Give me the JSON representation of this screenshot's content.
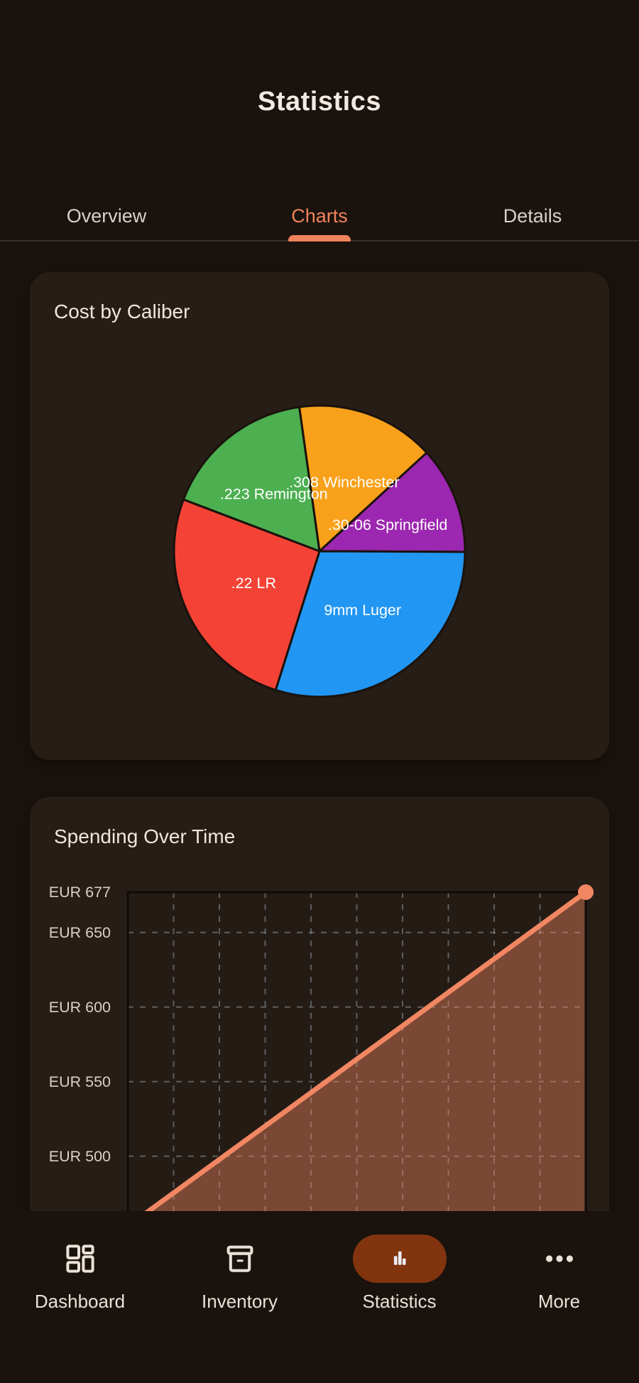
{
  "app": {
    "title": "Statistics"
  },
  "tabs": [
    {
      "label": "Overview",
      "active": false
    },
    {
      "label": "Charts",
      "active": true
    },
    {
      "label": "Details",
      "active": false
    }
  ],
  "chart_data": [
    {
      "type": "pie",
      "title": "Cost by Caliber",
      "start_angle_deg": -8,
      "legend": "labels drawn inside slices",
      "slices": [
        {
          "label": ".308 Winchester",
          "percent": 15.4,
          "color": "#F9A11B"
        },
        {
          "label": ".30-06 Springfield",
          "percent": 11.9,
          "color": "#9C27B0"
        },
        {
          "label": "9mm Luger",
          "percent": 29.8,
          "color": "#2196F3"
        },
        {
          "label": ".22 LR",
          "percent": 25.9,
          "color": "#F44336"
        },
        {
          "label": ".223 Remington",
          "percent": 17.0,
          "color": "#4CAF50"
        }
      ]
    },
    {
      "type": "area-line",
      "title": "Spending Over Time",
      "currency": "EUR",
      "y_top": 677,
      "y_ticks": [
        677,
        650,
        600,
        550,
        500
      ],
      "points": [
        {
          "x": 0,
          "value": 453
        },
        {
          "x": 1,
          "value": 677
        }
      ],
      "x_divisions": 10,
      "grid": "dashed",
      "line_color": "#F18762",
      "fill_color": "rgba(244,135,97,0.42)"
    }
  ],
  "nav": {
    "items": [
      {
        "label": "Dashboard",
        "icon": "dashboard-grid-icon",
        "active": false
      },
      {
        "label": "Inventory",
        "icon": "inventory-box-icon",
        "active": false
      },
      {
        "label": "Statistics",
        "icon": "bar-chart-icon",
        "active": true
      },
      {
        "label": "More",
        "icon": "more-dots-icon",
        "active": false
      }
    ]
  },
  "colors": {
    "page_bg": "#1A120C",
    "card_bg": "#271D17",
    "plot_bg": "#241B15",
    "plot_border": "#0E0B08",
    "grid_dash": "rgba(150,160,170,0.5)",
    "accent": "#F0835C",
    "line": "#F18762",
    "nav_pill": "#82340F",
    "title_text": "#F2E9E2",
    "secondary_text": "#D9D1C9"
  }
}
